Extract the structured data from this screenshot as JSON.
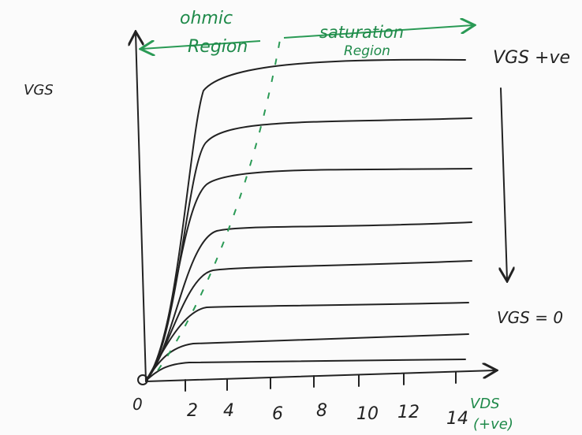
{
  "axis_labels": {
    "origin": "0",
    "x": "VDS",
    "x_sign": "(+ve)",
    "left": "VGS"
  },
  "regions": {
    "ohmic": {
      "line1": "ohmic",
      "line2": "Region"
    },
    "saturation": {
      "line1": "saturation",
      "line2": "Region"
    }
  },
  "annotations": {
    "top": "VGS +ve",
    "bottom": "VGS = 0"
  },
  "x_ticks": [
    "2",
    "4",
    "6",
    "8",
    "10",
    "12",
    "14"
  ]
}
